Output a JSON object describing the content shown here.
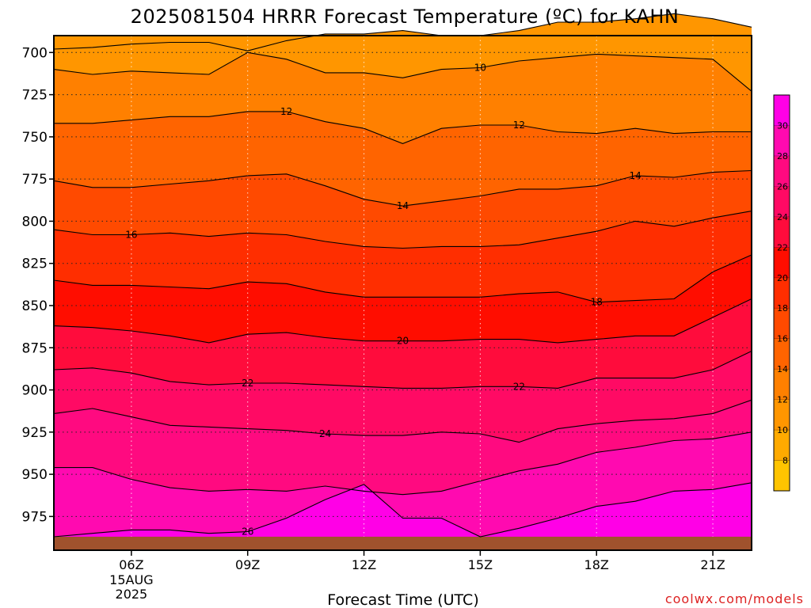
{
  "chart_data": {
    "type": "heatmap",
    "title": "2025081504 HRRR Forecast Temperature (ºC) for KAHN",
    "xlabel": "Forecast Time (UTC)",
    "ylabel": "",
    "x_ticks": [
      "06Z",
      "09Z",
      "12Z",
      "15Z",
      "18Z",
      "21Z"
    ],
    "x_tick_hours": [
      6,
      9,
      12,
      15,
      18,
      21
    ],
    "x_date_lines": [
      "15AUG",
      "2025"
    ],
    "xlim_hours": [
      4,
      22
    ],
    "y_ticks": [
      700,
      725,
      750,
      775,
      800,
      825,
      850,
      875,
      900,
      925,
      950,
      975
    ],
    "ylim_hPa": [
      690,
      995
    ],
    "ground_hPa": 987,
    "colorbar": {
      "levels": [
        6,
        8,
        10,
        12,
        14,
        16,
        18,
        20,
        22,
        24,
        26,
        28,
        30,
        32
      ],
      "tick_labels": [
        8,
        10,
        12,
        14,
        16,
        18,
        20,
        22,
        24,
        26,
        28,
        30
      ],
      "colors": [
        "#ffc400",
        "#ffaa00",
        "#ff9600",
        "#ff8000",
        "#ff6400",
        "#ff4a00",
        "#ff2e00",
        "#ff0d00",
        "#ff0c3c",
        "#ff0a64",
        "#ff0a80",
        "#ff0ab0",
        "#ff00e6"
      ]
    },
    "hours": [
      4,
      5,
      6,
      7,
      8,
      9,
      10,
      11,
      12,
      13,
      14,
      15,
      16,
      17,
      18,
      19,
      20,
      21,
      22
    ],
    "contours": [
      {
        "level": 10,
        "pressure": [
          698,
          697,
          695,
          694,
          694,
          699,
          693,
          689,
          689,
          687,
          690,
          690,
          687,
          682,
          682,
          680,
          677,
          680,
          685
        ]
      },
      {
        "level": 10,
        "pressure": [
          710,
          713,
          711,
          712,
          713,
          700,
          704,
          712,
          712,
          715,
          710,
          709,
          705,
          703,
          701,
          702,
          703,
          704,
          723
        ]
      },
      {
        "level": 12,
        "pressure": [
          742,
          742,
          740,
          738,
          738,
          735,
          735,
          741,
          745,
          754,
          745,
          743,
          743,
          747,
          748,
          745,
          748,
          747,
          747
        ]
      },
      {
        "level": 14,
        "pressure": [
          776,
          780,
          780,
          778,
          776,
          773,
          772,
          779,
          787,
          791,
          788,
          785,
          781,
          781,
          779,
          773,
          774,
          771,
          770
        ]
      },
      {
        "level": 16,
        "pressure": [
          805,
          808,
          808,
          807,
          809,
          807,
          808,
          812,
          815,
          816,
          815,
          815,
          814,
          810,
          806,
          800,
          803,
          798,
          794
        ]
      },
      {
        "level": 18,
        "pressure": [
          835,
          838,
          838,
          839,
          840,
          836,
          837,
          842,
          845,
          845,
          845,
          845,
          843,
          842,
          848,
          847,
          846,
          830,
          820
        ]
      },
      {
        "level": 20,
        "pressure": [
          862,
          863,
          865,
          868,
          872,
          867,
          866,
          869,
          871,
          871,
          871,
          870,
          870,
          872,
          870,
          868,
          868,
          857,
          846
        ]
      },
      {
        "level": 22,
        "pressure": [
          888,
          887,
          890,
          895,
          897,
          896,
          896,
          897,
          898,
          899,
          899,
          898,
          898,
          899,
          893,
          893,
          893,
          888,
          877
        ]
      },
      {
        "level": 24,
        "pressure": [
          914,
          911,
          916,
          921,
          922,
          923,
          924,
          926,
          927,
          927,
          925,
          926,
          931,
          923,
          920,
          918,
          917,
          914,
          906
        ]
      },
      {
        "level": 26,
        "pressure": [
          946,
          946,
          953,
          958,
          960,
          959,
          960,
          957,
          960,
          962,
          960,
          954,
          948,
          944,
          937,
          934,
          930,
          929,
          925
        ]
      },
      {
        "level": 26,
        "pressure": [
          987,
          985,
          983,
          983,
          985,
          984,
          976,
          965,
          956,
          976,
          976,
          987,
          982,
          976,
          969,
          966,
          960,
          959,
          955
        ]
      }
    ],
    "label_positions": [
      {
        "text": "10",
        "hour": 15.0
      },
      {
        "text": "12",
        "hour": 10.0
      },
      {
        "text": "12",
        "hour": 16.0
      },
      {
        "text": "14",
        "hour": 13.0
      },
      {
        "text": "14",
        "hour": 19.0
      },
      {
        "text": "16",
        "hour": 6.0
      },
      {
        "text": "18",
        "hour": 18.0
      },
      {
        "text": "20",
        "hour": 13.0
      },
      {
        "text": "22",
        "hour": 9.0
      },
      {
        "text": "22",
        "hour": 16.0
      },
      {
        "text": "24",
        "hour": 11.0
      },
      {
        "text": "26",
        "hour": 9.0
      }
    ]
  },
  "credit": "coolwx.com/models"
}
